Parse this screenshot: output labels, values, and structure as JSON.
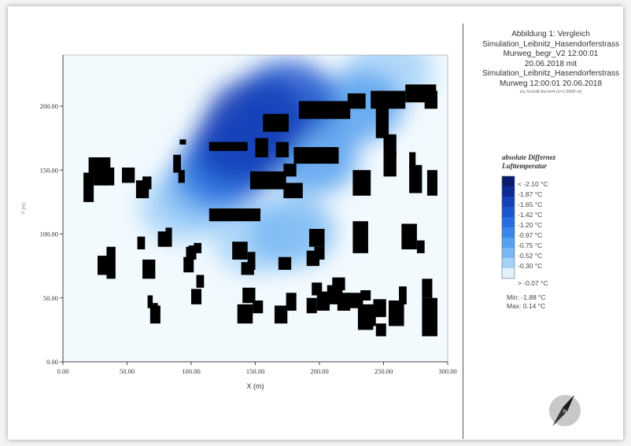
{
  "chart_data": {
    "type": "heatmap",
    "title": "Abbildung 1: Vergleich",
    "title_lines": [
      "Abbildung 1: Vergleich",
      "Simulation_Leibnitz_Hasendorferstrass",
      "Murweg_begr_V2 12:00:01",
      "20.06.2018 mit",
      "Simulation_Leibnitz_Hasendorferstrass",
      "Murweg 12:00:01 20.06.2018"
    ],
    "subtitle": "x/y Schnitt bei k=4 (z=1.0000 m)",
    "xlabel": "X (m)",
    "ylabel": "Y (m)",
    "xlim": [
      0,
      300
    ],
    "ylim": [
      0,
      240
    ],
    "x_ticks": [
      "0.00",
      "50.00",
      "100.00",
      "150.00",
      "200.00",
      "250.00",
      "300.00"
    ],
    "y_ticks": [
      "0.00",
      "50.00",
      "100.00",
      "150.00",
      "200.00"
    ],
    "x_tick_values": [
      0,
      50,
      100,
      150,
      200,
      250,
      300
    ],
    "y_tick_values": [
      0,
      50,
      100,
      150,
      200
    ],
    "legend": {
      "title_lines": [
        "absolute Differnez",
        "Lufttemperatur"
      ],
      "labels": [
        "< -2.10 °C",
        "-1.87 °C",
        "-1.65 °C",
        "-1.42 °C",
        "-1.20 °C",
        "-0.97 °C",
        "-0.75 °C",
        "-0.52 °C",
        "-0.30 °C",
        "> -0.07 °C"
      ],
      "colors": [
        "#0a1c6e",
        "#0d2a94",
        "#1440b8",
        "#1c56cf",
        "#266ddf",
        "#3a86e8",
        "#55a0ef",
        "#7ab8f3",
        "#a6d2f8",
        "#e2f2fd"
      ],
      "placement": "right"
    },
    "min_label": "Min: -1.88 °C",
    "max_label": "Max: 0.14 °C",
    "field": [
      {
        "x": 152,
        "y": 190,
        "value": -1.75
      },
      {
        "x": 140,
        "y": 170,
        "value": -1.55
      },
      {
        "x": 175,
        "y": 205,
        "value": -1.35
      },
      {
        "x": 125,
        "y": 150,
        "value": -1.1
      },
      {
        "x": 195,
        "y": 160,
        "value": -0.85
      },
      {
        "x": 230,
        "y": 200,
        "value": -0.75
      },
      {
        "x": 178,
        "y": 102,
        "value": -0.55
      },
      {
        "x": 110,
        "y": 135,
        "value": -0.5
      },
      {
        "x": 255,
        "y": 228,
        "value": -0.4
      },
      {
        "x": 150,
        "y": 95,
        "value": -0.35
      },
      {
        "x": 92,
        "y": 120,
        "value": -0.3
      }
    ],
    "buildings_xy": [
      [
        20,
        145,
        17,
        15
      ],
      [
        16,
        125,
        8,
        23
      ],
      [
        24,
        138,
        10,
        12
      ],
      [
        32,
        138,
        8,
        14
      ],
      [
        46,
        140,
        10,
        12
      ],
      [
        57,
        128,
        10,
        14
      ],
      [
        62,
        135,
        7,
        10
      ],
      [
        86,
        148,
        6,
        14
      ],
      [
        90,
        140,
        5,
        10
      ],
      [
        91,
        170,
        5,
        4
      ],
      [
        114,
        165,
        30,
        7
      ],
      [
        150,
        160,
        10,
        15
      ],
      [
        166,
        160,
        10,
        12
      ],
      [
        172,
        145,
        10,
        10
      ],
      [
        180,
        155,
        35,
        13
      ],
      [
        146,
        135,
        28,
        14
      ],
      [
        172,
        128,
        15,
        12
      ],
      [
        114,
        110,
        40,
        10
      ],
      [
        156,
        180,
        20,
        14
      ],
      [
        184,
        190,
        40,
        14
      ],
      [
        222,
        198,
        14,
        12
      ],
      [
        240,
        198,
        27,
        14
      ],
      [
        267,
        203,
        24,
        14
      ],
      [
        282,
        198,
        10,
        14
      ],
      [
        244,
        175,
        10,
        25
      ],
      [
        250,
        160,
        10,
        18
      ],
      [
        250,
        145,
        10,
        20
      ],
      [
        226,
        130,
        14,
        20
      ],
      [
        270,
        132,
        10,
        22
      ],
      [
        270,
        150,
        5,
        14
      ],
      [
        284,
        130,
        8,
        20
      ],
      [
        226,
        85,
        12,
        25
      ],
      [
        264,
        88,
        12,
        20
      ],
      [
        276,
        85,
        6,
        10
      ],
      [
        132,
        80,
        12,
        14
      ],
      [
        139,
        68,
        10,
        10
      ],
      [
        144,
        72,
        6,
        14
      ],
      [
        168,
        72,
        10,
        10
      ],
      [
        190,
        75,
        10,
        12
      ],
      [
        192,
        90,
        12,
        14
      ],
      [
        196,
        80,
        8,
        10
      ],
      [
        62,
        65,
        10,
        15
      ],
      [
        34,
        65,
        7,
        25
      ],
      [
        27,
        68,
        8,
        15
      ],
      [
        34,
        72,
        4,
        10
      ],
      [
        58,
        88,
        6,
        10
      ],
      [
        74,
        90,
        7,
        12
      ],
      [
        80,
        90,
        5,
        15
      ],
      [
        96,
        80,
        8,
        10
      ],
      [
        94,
        70,
        8,
        12
      ],
      [
        98,
        85,
        4,
        6
      ],
      [
        102,
        85,
        6,
        8
      ],
      [
        100,
        45,
        8,
        12
      ],
      [
        104,
        58,
        6,
        10
      ],
      [
        136,
        30,
        12,
        15
      ],
      [
        140,
        46,
        10,
        12
      ],
      [
        148,
        38,
        8,
        10
      ],
      [
        165,
        30,
        10,
        14
      ],
      [
        174,
        40,
        8,
        14
      ],
      [
        190,
        38,
        8,
        12
      ],
      [
        198,
        40,
        10,
        15
      ],
      [
        206,
        45,
        12,
        15
      ],
      [
        214,
        40,
        10,
        14
      ],
      [
        230,
        25,
        12,
        20
      ],
      [
        242,
        35,
        10,
        14
      ],
      [
        254,
        28,
        12,
        20
      ],
      [
        262,
        45,
        6,
        14
      ],
      [
        280,
        20,
        12,
        30
      ],
      [
        280,
        50,
        8,
        15
      ],
      [
        68,
        30,
        8,
        14
      ],
      [
        66,
        42,
        4,
        10
      ],
      [
        70,
        38,
        4,
        8
      ],
      [
        194,
        52,
        8,
        10
      ],
      [
        210,
        56,
        10,
        10
      ],
      [
        222,
        42,
        12,
        12
      ],
      [
        232,
        48,
        8,
        8
      ],
      [
        236,
        28,
        8,
        10
      ],
      [
        244,
        20,
        8,
        10
      ]
    ]
  },
  "compass": {
    "label": "N",
    "icon": "north-arrow-icon"
  }
}
